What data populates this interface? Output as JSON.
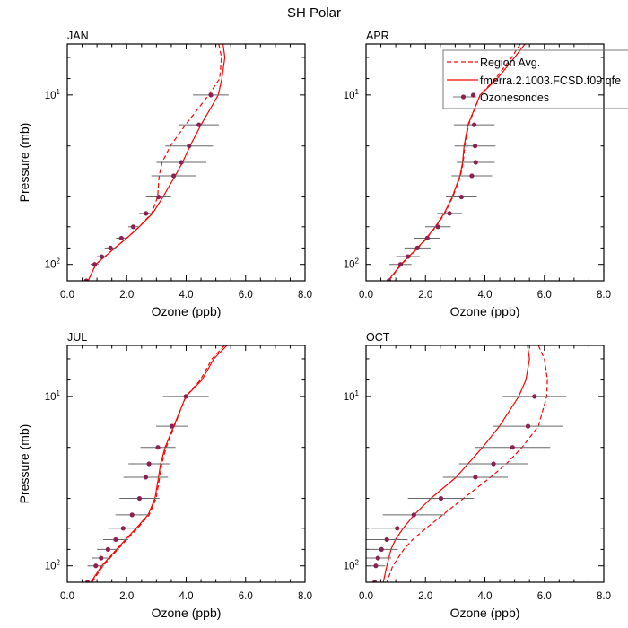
{
  "figure_title": "SH Polar",
  "legend": {
    "entries": [
      {
        "label": "Region Avg.",
        "style": "dashed",
        "color": "#ff0000"
      },
      {
        "label": "fmerra.2.1003.FCSD.f09.qfe",
        "style": "solid",
        "color": "#ff0000"
      },
      {
        "label": "Ozonesondes",
        "style": "marker",
        "color": "#8c2050"
      }
    ]
  },
  "colors": {
    "model": "#ff0000",
    "obs_marker": "#8c2050",
    "error_bar": "#666666"
  },
  "chart_data": {
    "type": "line",
    "xlabel": "Ozone (ppb)",
    "ylabel": "Pressure (mb)",
    "xlim": [
      0,
      8
    ],
    "ylim": [
      5,
      125
    ],
    "yscale": "log",
    "xticks": [
      0,
      2,
      4,
      6,
      8
    ],
    "xtick_labels": [
      "0.0",
      "2.0",
      "4.0",
      "6.0",
      "8.0"
    ],
    "xminor_step": 0.5,
    "yticks": [
      10,
      100
    ],
    "ytick_labels": [
      {
        "base": "10",
        "exp": "1"
      },
      {
        "base": "10",
        "exp": "2"
      }
    ],
    "yminor": [
      6,
      8,
      20,
      40,
      60,
      80
    ],
    "legend_placement": "top-right of APR panel",
    "panels": [
      {
        "title": "JAN",
        "series": [
          {
            "name": "Region Avg.",
            "style": "dashed",
            "pressure": [
              5,
              6,
              8,
              10,
              15,
              20,
              25,
              30,
              40,
              50,
              60,
              70,
              80,
              100,
              125
            ],
            "ozone": [
              5.1,
              5.19,
              5.13,
              4.76,
              3.98,
              3.47,
              3.19,
              3.09,
              3.04,
              2.84,
              2.42,
              2.0,
              1.6,
              0.96,
              0.7
            ]
          },
          {
            "name": "fmerra.2.1003.FCSD.f09.qfe",
            "style": "solid",
            "pressure": [
              5,
              6,
              8,
              10,
              15,
              20,
              25,
              30,
              40,
              50,
              60,
              70,
              80,
              100,
              125
            ],
            "ozone": [
              5.24,
              5.3,
              5.2,
              5.08,
              4.5,
              4.13,
              3.88,
              3.63,
              3.22,
              2.87,
              2.42,
              2.0,
              1.6,
              0.96,
              0.7
            ]
          }
        ],
        "obs": {
          "pressure": [
            10,
            15,
            20,
            25,
            30,
            40,
            50,
            60,
            70,
            80,
            90,
            100,
            125
          ],
          "ozone": [
            4.83,
            4.43,
            4.1,
            3.84,
            3.58,
            3.07,
            2.65,
            2.22,
            1.82,
            1.45,
            1.16,
            0.92,
            0.64
          ],
          "err": [
            0.6,
            0.67,
            0.8,
            0.84,
            0.75,
            0.42,
            0.23,
            0.17,
            0.18,
            0.19,
            0.17,
            0.14,
            0.1
          ]
        }
      },
      {
        "title": "APR",
        "series": [
          {
            "name": "Region Avg.",
            "style": "dashed",
            "pressure": [
              5,
              6,
              8,
              10,
              15,
              20,
              25,
              30,
              40,
              50,
              60,
              70,
              80,
              100,
              125
            ],
            "ozone": [
              5.19,
              4.9,
              4.36,
              3.84,
              3.45,
              3.32,
              3.27,
              3.18,
              2.92,
              2.65,
              2.35,
              2.05,
              1.75,
              1.19,
              0.76
            ]
          },
          {
            "name": "fmerra.2.1003.FCSD.f09.qfe",
            "style": "solid",
            "pressure": [
              5,
              6,
              8,
              10,
              15,
              20,
              25,
              30,
              40,
              50,
              60,
              70,
              80,
              100,
              125
            ],
            "ozone": [
              5.35,
              5.0,
              4.42,
              3.84,
              3.43,
              3.3,
              3.25,
              3.16,
              2.9,
              2.63,
              2.33,
              2.03,
              1.73,
              1.17,
              0.74
            ]
          }
        ],
        "obs": {
          "pressure": [
            15,
            20,
            25,
            30,
            40,
            50,
            60,
            70,
            80,
            90,
            100,
            125
          ],
          "ozone": [
            3.64,
            3.67,
            3.69,
            3.56,
            3.21,
            2.81,
            2.42,
            2.06,
            1.73,
            1.41,
            1.16,
            0.77
          ],
          "err": [
            0.69,
            0.69,
            0.64,
            0.68,
            0.52,
            0.42,
            0.43,
            0.44,
            0.44,
            0.4,
            0.37,
            0.1
          ]
        }
      },
      {
        "title": "JUL",
        "series": [
          {
            "name": "Region Avg.",
            "style": "dashed",
            "pressure": [
              5,
              6,
              8,
              10,
              15,
              20,
              25,
              30,
              40,
              50,
              60,
              70,
              80,
              100,
              125
            ],
            "ozone": [
              5.29,
              4.87,
              4.48,
              3.99,
              3.6,
              3.33,
              3.18,
              3.11,
              2.99,
              2.76,
              2.36,
              2.0,
              1.7,
              1.2,
              0.83
            ]
          },
          {
            "name": "fmerra.2.1003.FCSD.f09.qfe",
            "style": "solid",
            "pressure": [
              5,
              6,
              8,
              10,
              15,
              20,
              25,
              30,
              40,
              50,
              60,
              70,
              80,
              100,
              125
            ],
            "ozone": [
              5.37,
              4.93,
              4.53,
              3.99,
              3.58,
              3.29,
              3.14,
              3.07,
              2.95,
              2.72,
              2.32,
              1.96,
              1.66,
              1.16,
              0.79
            ]
          }
        ],
        "obs": {
          "pressure": [
            10,
            15,
            20,
            25,
            30,
            40,
            50,
            60,
            70,
            80,
            90,
            100,
            125
          ],
          "ozone": [
            3.99,
            3.52,
            3.05,
            2.75,
            2.64,
            2.43,
            2.18,
            1.88,
            1.63,
            1.37,
            1.14,
            0.96,
            0.68
          ],
          "err": [
            0.77,
            0.53,
            0.59,
            0.69,
            0.75,
            0.67,
            0.56,
            0.51,
            0.42,
            0.37,
            0.32,
            0.28,
            0.1
          ]
        }
      },
      {
        "title": "OCT",
        "series": [
          {
            "name": "Region Avg.",
            "style": "dashed",
            "pressure": [
              5,
              6,
              8,
              10,
              15,
              20,
              25,
              30,
              40,
              50,
              60,
              70,
              80,
              100,
              125
            ],
            "ozone": [
              5.8,
              6.0,
              6.1,
              6.08,
              5.8,
              5.25,
              4.72,
              4.19,
              3.28,
              2.58,
              2.02,
              1.57,
              1.27,
              0.9,
              0.7
            ]
          },
          {
            "name": "fmerra.2.1003.FCSD.f09.qfe",
            "style": "solid",
            "pressure": [
              5,
              6,
              8,
              10,
              15,
              20,
              25,
              30,
              40,
              50,
              60,
              70,
              80,
              100,
              125
            ],
            "ozone": [
              5.43,
              5.5,
              5.38,
              5.14,
              4.49,
              3.92,
              3.43,
              3.03,
              2.18,
              1.62,
              1.25,
              0.99,
              0.84,
              0.7,
              0.58
            ]
          }
        ],
        "obs": {
          "pressure": [
            10,
            15,
            20,
            25,
            30,
            40,
            50,
            60,
            70,
            80,
            90,
            100,
            125
          ],
          "ozone": [
            5.67,
            5.45,
            4.93,
            4.29,
            3.68,
            2.52,
            1.61,
            1.05,
            0.7,
            0.52,
            0.4,
            0.33,
            0.29
          ],
          "err": [
            1.07,
            1.16,
            1.27,
            1.16,
            1.09,
            1.11,
            1.05,
            0.9,
            0.7,
            0.55,
            0.45,
            0.31,
            0.1
          ]
        }
      }
    ]
  }
}
